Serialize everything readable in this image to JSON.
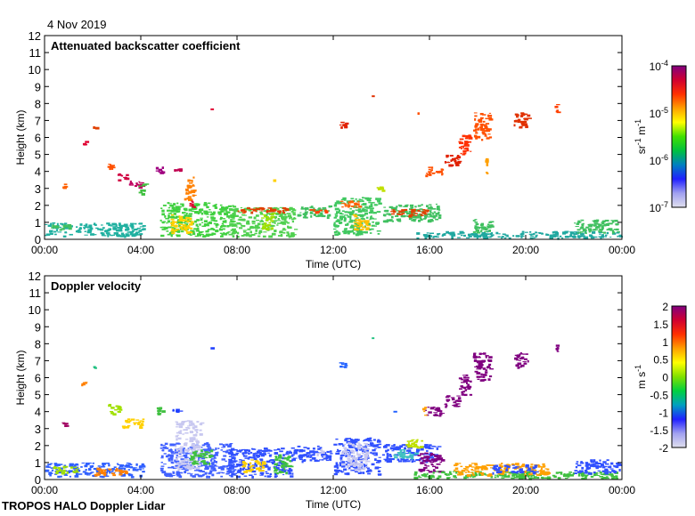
{
  "date_label": "4 Nov 2019",
  "footer": "TROPOS HALO Doppler Lidar",
  "chart_data": [
    {
      "type": "heatmap",
      "title": "Attenuated backscatter coefficient",
      "xlabel": "Time (UTC)",
      "ylabel": "Height (km)",
      "xlim": [
        0,
        24
      ],
      "ylim": [
        0,
        12
      ],
      "xticks": [
        0,
        4,
        8,
        12,
        16,
        20,
        24
      ],
      "xticklabels": [
        "00:00",
        "04:00",
        "08:00",
        "12:00",
        "16:00",
        "20:00",
        "00:00"
      ],
      "yticks": [
        0,
        1,
        2,
        3,
        4,
        5,
        6,
        7,
        8,
        9,
        10,
        11,
        12
      ],
      "yticklabels": [
        "0",
        "1",
        "2",
        "3",
        "4",
        "5",
        "6",
        "7",
        "8",
        "9",
        "10",
        "11",
        "12"
      ],
      "colorbar": {
        "label_base": "sr",
        "label_exp1": "-1",
        "label_mid": " m",
        "label_exp2": "-1",
        "scale": "log",
        "range": [
          1e-07,
          0.0001
        ],
        "ticks": [
          {
            "base": "10",
            "exp": "-4"
          },
          {
            "base": "10",
            "exp": "-5"
          },
          {
            "base": "10",
            "exp": "-6"
          },
          {
            "base": "10",
            "exp": "-7"
          }
        ]
      },
      "patches": [
        [
          0,
          4.2,
          0.1,
          1.0,
          "#20b0a0"
        ],
        [
          0.2,
          1.2,
          0.5,
          0.9,
          "#40c060"
        ],
        [
          0.7,
          1.0,
          3.0,
          3.4,
          "#ff6000"
        ],
        [
          1.5,
          1.8,
          5.4,
          5.8,
          "#e00030"
        ],
        [
          2.0,
          2.3,
          6.5,
          6.7,
          "#e04000"
        ],
        [
          2.6,
          3.0,
          4.0,
          4.5,
          "#ff5000"
        ],
        [
          3.0,
          3.5,
          3.4,
          3.9,
          "#d00040"
        ],
        [
          3.5,
          4.2,
          3.0,
          3.5,
          "#c00060"
        ],
        [
          3.9,
          4.3,
          2.6,
          3.3,
          "#40c040"
        ],
        [
          4.6,
          5.0,
          3.8,
          4.3,
          "#a00080"
        ],
        [
          5.3,
          5.8,
          3.9,
          4.2,
          "#c00050"
        ],
        [
          4.8,
          8.0,
          0.1,
          2.2,
          "#40d040"
        ],
        [
          5.2,
          6.2,
          0.3,
          1.5,
          "#ffd000"
        ],
        [
          5.8,
          6.3,
          2.2,
          3.7,
          "#ff8000"
        ],
        [
          6.0,
          6.4,
          1.8,
          2.3,
          "#e00030"
        ],
        [
          7.6,
          10.5,
          0.1,
          1.9,
          "#50d050"
        ],
        [
          8.0,
          10.2,
          1.5,
          1.9,
          "#e04000"
        ],
        [
          9.0,
          9.6,
          0.5,
          1.6,
          "#a0e000"
        ],
        [
          10.5,
          12.0,
          1.2,
          2.0,
          "#40c060"
        ],
        [
          11.0,
          11.8,
          1.5,
          1.8,
          "#ff4000"
        ],
        [
          9.5,
          9.6,
          3.4,
          3.6,
          "#ffd000"
        ],
        [
          12.0,
          14.0,
          0.2,
          2.5,
          "#40c860"
        ],
        [
          12.2,
          13.2,
          1.8,
          2.3,
          "#ff6000"
        ],
        [
          12.8,
          13.5,
          0.5,
          1.5,
          "#ffc000"
        ],
        [
          14.0,
          16.5,
          1.0,
          2.1,
          "#40c060"
        ],
        [
          14.3,
          16.0,
          1.3,
          1.8,
          "#e04000"
        ],
        [
          13.8,
          14.2,
          2.8,
          3.2,
          "#c0e000"
        ],
        [
          15.3,
          24.0,
          0.0,
          0.5,
          "#20a8a0"
        ],
        [
          17.8,
          18.7,
          0.3,
          1.2,
          "#40c060"
        ],
        [
          22.0,
          24.0,
          0.3,
          1.2,
          "#40c060"
        ],
        [
          15.8,
          16.6,
          3.7,
          4.3,
          "#ff5000"
        ],
        [
          16.6,
          17.3,
          4.2,
          5.0,
          "#e02000"
        ],
        [
          17.2,
          17.8,
          4.9,
          6.2,
          "#ff3000"
        ],
        [
          17.8,
          18.6,
          5.8,
          7.5,
          "#ff5000"
        ],
        [
          18.3,
          18.5,
          3.8,
          4.8,
          "#ffa000"
        ],
        [
          19.5,
          20.2,
          6.5,
          7.5,
          "#e03000"
        ],
        [
          21.2,
          21.4,
          7.4,
          8.0,
          "#ff4000"
        ],
        [
          12.2,
          12.6,
          6.5,
          7.0,
          "#e02000"
        ],
        [
          13.6,
          13.7,
          8.2,
          8.5,
          "#e03000"
        ],
        [
          6.9,
          7.0,
          7.6,
          7.8,
          "#e00030"
        ],
        [
          15.5,
          15.6,
          7.3,
          7.5,
          "#ff5000"
        ]
      ]
    },
    {
      "type": "heatmap",
      "title": "Doppler velocity",
      "xlabel": "Time (UTC)",
      "ylabel": "Height (km)",
      "xlim": [
        0,
        24
      ],
      "ylim": [
        0,
        12
      ],
      "xticks": [
        0,
        4,
        8,
        12,
        16,
        20,
        24
      ],
      "xticklabels": [
        "00:00",
        "04:00",
        "08:00",
        "12:00",
        "16:00",
        "20:00",
        "00:00"
      ],
      "yticks": [
        0,
        1,
        2,
        3,
        4,
        5,
        6,
        7,
        8,
        9,
        10,
        11,
        12
      ],
      "yticklabels": [
        "0",
        "1",
        "2",
        "3",
        "4",
        "5",
        "6",
        "7",
        "8",
        "9",
        "10",
        "11",
        "12"
      ],
      "colorbar": {
        "label_base": "m s",
        "label_exp1": "-1",
        "label_mid": "",
        "label_exp2": "",
        "scale": "linear",
        "range": [
          -2,
          2
        ],
        "ticks": [
          {
            "base": "2",
            "exp": ""
          },
          {
            "base": "1.5",
            "exp": ""
          },
          {
            "base": "1",
            "exp": ""
          },
          {
            "base": "0.5",
            "exp": ""
          },
          {
            "base": "0",
            "exp": ""
          },
          {
            "base": "-0.5",
            "exp": ""
          },
          {
            "base": "-1",
            "exp": ""
          },
          {
            "base": "-1.5",
            "exp": ""
          },
          {
            "base": "-2",
            "exp": ""
          }
        ]
      },
      "patches": [
        [
          0,
          4.2,
          0.1,
          1.0,
          "#3060ff"
        ],
        [
          0.3,
          1.5,
          0.3,
          0.8,
          "#a0e000"
        ],
        [
          2.0,
          3.5,
          0.2,
          0.7,
          "#ff8000"
        ],
        [
          0.7,
          1.0,
          3.0,
          3.4,
          "#a00060"
        ],
        [
          1.5,
          1.8,
          5.4,
          5.8,
          "#ff8000"
        ],
        [
          2.0,
          2.3,
          6.5,
          6.7,
          "#20c080"
        ],
        [
          2.6,
          3.2,
          3.8,
          4.5,
          "#a0e000"
        ],
        [
          3.2,
          4.2,
          3.0,
          3.6,
          "#ffd000"
        ],
        [
          4.6,
          5.0,
          3.8,
          4.3,
          "#40c040"
        ],
        [
          5.3,
          5.8,
          3.9,
          4.2,
          "#2040ff"
        ],
        [
          4.8,
          8.0,
          0.1,
          2.2,
          "#4060ff"
        ],
        [
          5.4,
          6.6,
          0.5,
          3.5,
          "#c8c8f0"
        ],
        [
          6.0,
          7.0,
          0.8,
          1.8,
          "#40c040"
        ],
        [
          7.6,
          10.5,
          0.1,
          1.9,
          "#3050ff"
        ],
        [
          8.2,
          9.2,
          0.4,
          1.2,
          "#ffd000"
        ],
        [
          9.5,
          10.3,
          0.3,
          1.5,
          "#40c040"
        ],
        [
          10.5,
          12.0,
          1.0,
          2.0,
          "#3050ff"
        ],
        [
          11.3,
          11.7,
          1.3,
          1.8,
          "#c8c8f0"
        ],
        [
          12.0,
          14.0,
          0.2,
          2.5,
          "#3050ff"
        ],
        [
          12.3,
          13.5,
          0.5,
          2.2,
          "#c8c8f0"
        ],
        [
          14.0,
          16.5,
          1.0,
          2.1,
          "#3050ff"
        ],
        [
          14.5,
          15.5,
          1.2,
          1.8,
          "#40c0c0"
        ],
        [
          15.5,
          16.6,
          0.4,
          1.6,
          "#800080"
        ],
        [
          15.0,
          15.8,
          1.8,
          2.4,
          "#c0e000"
        ],
        [
          15.3,
          24.0,
          0.0,
          0.5,
          "#40c040"
        ],
        [
          17.0,
          21.0,
          0.2,
          1.0,
          "#ffa000"
        ],
        [
          18.5,
          20.5,
          0.3,
          0.9,
          "#3050ff"
        ],
        [
          22.0,
          24.0,
          0.3,
          1.2,
          "#3050ff"
        ],
        [
          15.8,
          16.6,
          3.7,
          4.3,
          "#800080"
        ],
        [
          16.6,
          17.3,
          4.2,
          5.0,
          "#800080"
        ],
        [
          17.2,
          17.8,
          4.9,
          6.2,
          "#800080"
        ],
        [
          17.8,
          18.6,
          5.8,
          7.5,
          "#800080"
        ],
        [
          19.5,
          20.2,
          6.5,
          7.5,
          "#800080"
        ],
        [
          21.2,
          21.4,
          7.4,
          8.0,
          "#800080"
        ],
        [
          15.7,
          15.9,
          3.7,
          4.3,
          "#ffa000"
        ],
        [
          12.2,
          12.6,
          6.5,
          7.0,
          "#2060ff"
        ],
        [
          13.6,
          13.7,
          8.2,
          8.5,
          "#20c080"
        ],
        [
          6.9,
          7.0,
          7.6,
          7.8,
          "#2040ff"
        ],
        [
          14.5,
          14.6,
          3.8,
          4.1,
          "#2060ff"
        ]
      ]
    }
  ]
}
